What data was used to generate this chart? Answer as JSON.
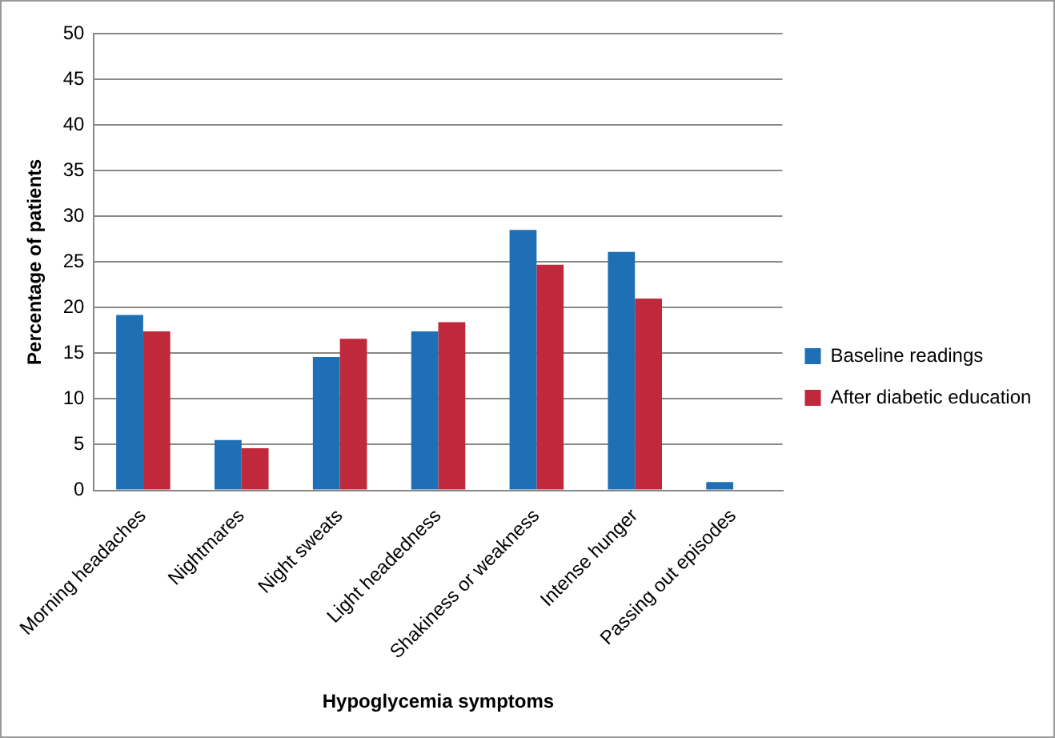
{
  "chart_data": {
    "type": "bar",
    "xlabel": "Hypoglycemia symptoms",
    "ylabel": "Percentage of patients",
    "categories": [
      "Morning headaches",
      "Nightmares",
      "Night sweats",
      "Light headedness",
      "Shakiness or weakness",
      "Intense hunger",
      "Passing out episodes"
    ],
    "series": [
      {
        "name": "Baseline readings",
        "color": "#1f6fb5",
        "values": [
          19.2,
          5.5,
          14.6,
          17.4,
          28.5,
          26.1,
          0.9
        ]
      },
      {
        "name": "After diabetic education",
        "color": "#c0283c",
        "values": [
          17.4,
          4.6,
          16.6,
          18.4,
          24.7,
          21,
          0
        ]
      }
    ],
    "ylim": [
      0,
      50
    ],
    "yticks": [
      0,
      5,
      10,
      15,
      20,
      25,
      30,
      35,
      40,
      45,
      50
    ],
    "grid": "y",
    "legend": "right"
  }
}
